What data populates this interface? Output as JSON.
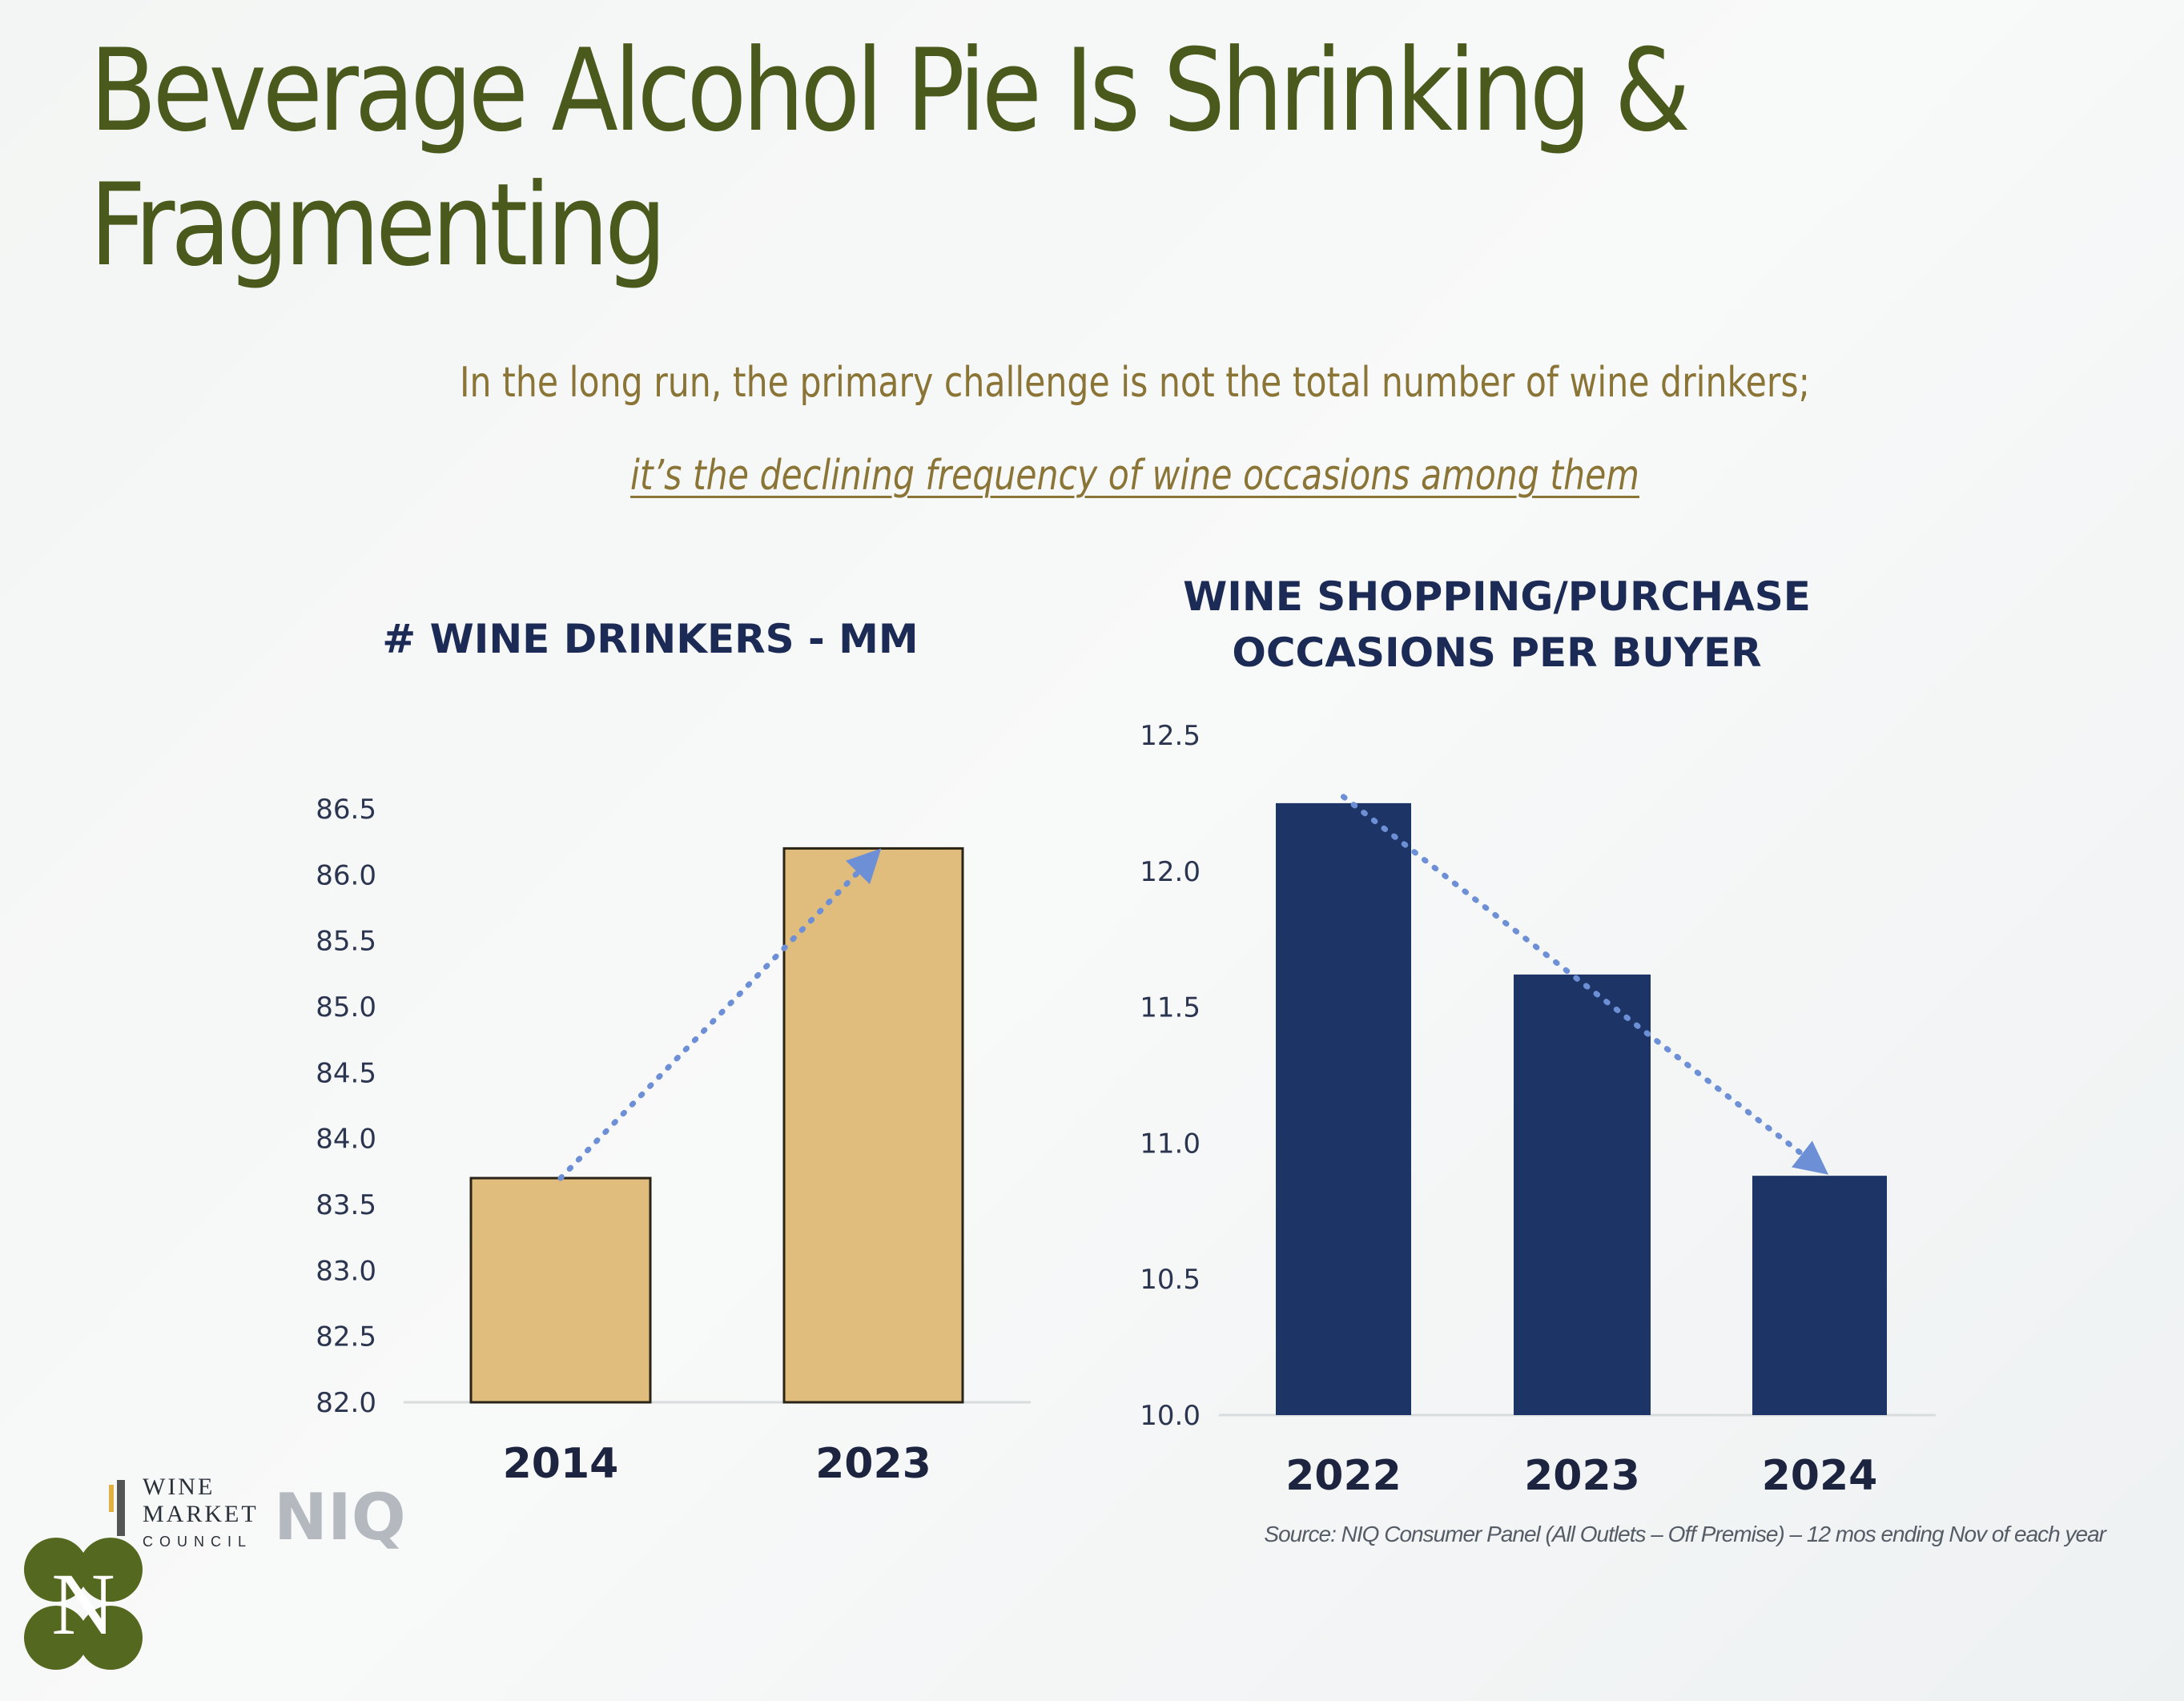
{
  "title": {
    "line1": "Beverage Alcohol Pie Is Shrinking &",
    "line2": "Fragmenting"
  },
  "subtitle": {
    "line1": "In the long run, the primary challenge is not the total number of wine drinkers;",
    "line2": "it’s the declining frequency of wine occasions among them"
  },
  "colors": {
    "title": "#4a5a1c",
    "subtitle": "#8a7436",
    "left_bar": "#e0bd7c",
    "right_bar": "#1c3566",
    "trend_arrow": "#6d8fd6"
  },
  "chart_data": [
    {
      "type": "bar",
      "title": "# WINE DRINKERS - MM",
      "categories": [
        "2014",
        "2023"
      ],
      "values": [
        83.7,
        86.2
      ],
      "ylim": [
        82.0,
        86.5
      ],
      "yticks": [
        "82.0",
        "82.5",
        "83.0",
        "83.5",
        "84.0",
        "84.5",
        "85.0",
        "85.5",
        "86.0",
        "86.5"
      ],
      "xlabel": "",
      "ylabel": "",
      "trend": "up"
    },
    {
      "type": "bar",
      "title": "WINE SHOPPING/PURCHASE OCCASIONS PER BUYER",
      "title_lines": [
        "WINE SHOPPING/PURCHASE",
        "OCCASIONS PER BUYER"
      ],
      "categories": [
        "2022",
        "2023",
        "2024"
      ],
      "values": [
        12.25,
        11.62,
        10.88
      ],
      "ylim": [
        10.0,
        12.5
      ],
      "yticks": [
        "10.0",
        "10.5",
        "11.0",
        "11.5",
        "12.0",
        "12.5"
      ],
      "xlabel": "",
      "ylabel": "",
      "trend": "down"
    }
  ],
  "source": "Source: NIQ Consumer Panel (All Outlets – Off Premise) – 12 mos ending Nov of each year",
  "logos": {
    "wmc": [
      "WINE",
      "MARKET",
      "COUNCIL"
    ],
    "niq": "NIQ"
  }
}
